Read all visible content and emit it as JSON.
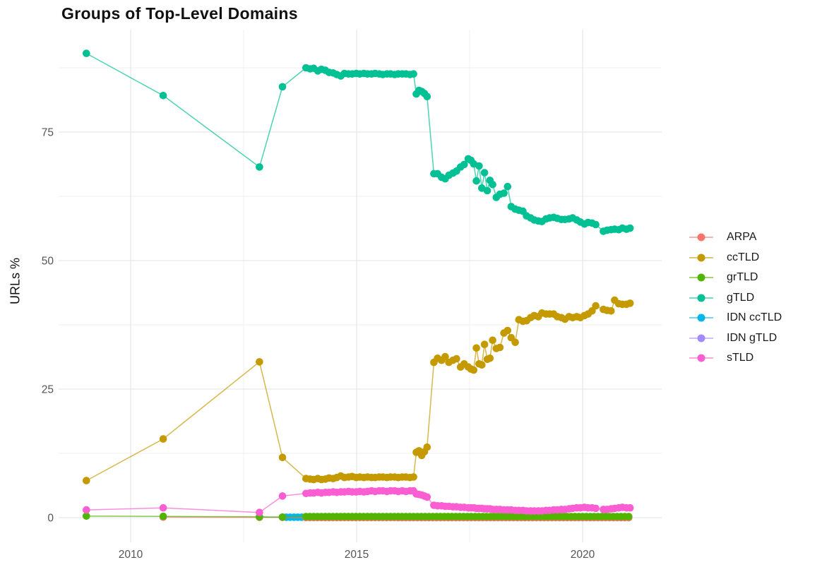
{
  "chart_data": {
    "type": "line",
    "title": "Groups of Top-Level Domains",
    "xlabel": "",
    "ylabel": "URLs %",
    "grid": true,
    "legend_position": "right",
    "x_ticks": [
      2010,
      2015,
      2020
    ],
    "x_minor": [
      2012.5,
      2017.5
    ],
    "y_ticks": [
      0,
      25,
      50,
      75
    ],
    "y_minor": [
      12.5,
      37.5,
      62.5,
      87.5
    ],
    "x_range": [
      2008.4,
      2021.75
    ],
    "y_range": [
      -4.8,
      94.9
    ],
    "draw_order": [
      "IDN gTLD",
      "IDN ccTLD",
      "ARPA",
      "grTLD",
      "ccTLD",
      "gTLD",
      "sTLD"
    ],
    "dense_x": [
      2013.88,
      2013.97,
      2014.05,
      2014.14,
      2014.22,
      2014.31,
      2014.39,
      2014.48,
      2014.56,
      2014.65,
      2014.73,
      2014.82,
      2014.9,
      2014.99,
      2015.07,
      2015.16,
      2015.24,
      2015.33,
      2015.41,
      2015.5,
      2015.58,
      2015.67,
      2015.75,
      2015.84,
      2015.92,
      2016.01,
      2016.09,
      2016.18,
      2016.26,
      2016.32,
      2016.38,
      2016.44,
      2016.5,
      2016.56,
      2016.71,
      2016.79,
      2016.88,
      2016.96,
      2017.04,
      2017.13,
      2017.21,
      2017.3,
      2017.38,
      2017.47,
      2017.53,
      2017.59,
      2017.65,
      2017.71,
      2017.77,
      2017.83,
      2017.89,
      2017.95,
      2018.01,
      2018.09,
      2018.17,
      2018.26,
      2018.34,
      2018.42,
      2018.51,
      2018.59,
      2018.68,
      2018.76,
      2018.85,
      2018.93,
      2019.02,
      2019.1,
      2019.19,
      2019.27,
      2019.36,
      2019.44,
      2019.53,
      2019.61,
      2019.7,
      2019.78,
      2019.87,
      2019.95,
      2020.04,
      2020.12,
      2020.21,
      2020.29,
      2020.46,
      2020.54,
      2020.63,
      2020.71,
      2020.8,
      2020.88,
      2020.97,
      2021.05
    ],
    "series": [
      {
        "name": "ARPA",
        "color": "#F8766D",
        "sparse": [
          [
            2010.72,
            0.1
          ],
          [
            2012.85,
            0.05
          ],
          [
            2013.36,
            0.05
          ]
        ],
        "flat": {
          "from": 2013.88,
          "to": 2021.05,
          "step": 0.085,
          "y": 0.02
        }
      },
      {
        "name": "ccTLD",
        "color": "#C49A00",
        "sparse": [
          [
            2009.02,
            7.2
          ],
          [
            2010.72,
            15.3
          ],
          [
            2012.85,
            30.3
          ],
          [
            2013.36,
            11.7
          ]
        ],
        "dense_y": [
          7.6,
          7.5,
          7.4,
          7.6,
          7.4,
          7.5,
          7.7,
          7.6,
          7.8,
          8.1,
          7.8,
          7.9,
          8.0,
          7.8,
          7.9,
          7.8,
          7.9,
          7.8,
          7.8,
          7.9,
          7.9,
          7.8,
          7.9,
          7.9,
          7.8,
          7.9,
          7.9,
          7.8,
          7.9,
          12.7,
          13.0,
          12.1,
          12.8,
          13.7,
          30.2,
          31.0,
          30.6,
          31.3,
          30.2,
          30.6,
          30.9,
          29.3,
          29.9,
          29.3,
          28.9,
          28.7,
          33.0,
          29.9,
          29.7,
          33.7,
          30.8,
          31.0,
          34.5,
          32.9,
          33.1,
          35.9,
          36.4,
          35.0,
          34.1,
          38.5,
          38.2,
          38.3,
          38.9,
          39.3,
          39.1,
          39.8,
          39.6,
          39.6,
          39.6,
          39.1,
          38.9,
          38.6,
          39.1,
          38.9,
          39.1,
          38.9,
          39.3,
          39.6,
          40.2,
          41.2,
          40.5,
          40.3,
          40.2,
          42.3,
          41.6,
          41.5,
          41.5,
          41.7
        ]
      },
      {
        "name": "grTLD",
        "color": "#53B400",
        "sparse": [
          [
            2009.02,
            0.3
          ],
          [
            2010.72,
            0.25
          ],
          [
            2012.85,
            0.15
          ],
          [
            2013.36,
            0.1
          ]
        ],
        "flat": {
          "from": 2013.88,
          "to": 2021.05,
          "step": 0.085,
          "y": 0.2
        }
      },
      {
        "name": "gTLD",
        "color": "#00C094",
        "sparse": [
          [
            2009.02,
            90.3
          ],
          [
            2010.72,
            82.1
          ],
          [
            2012.85,
            68.2
          ],
          [
            2013.36,
            83.8
          ]
        ],
        "dense_y": [
          87.5,
          87.3,
          87.4,
          86.9,
          87.2,
          87.0,
          86.6,
          86.5,
          86.2,
          85.9,
          86.4,
          86.3,
          86.3,
          86.4,
          86.3,
          86.4,
          86.3,
          86.3,
          86.4,
          86.3,
          86.2,
          86.3,
          86.3,
          86.2,
          86.3,
          86.3,
          86.3,
          86.2,
          86.3,
          82.4,
          83.1,
          82.9,
          82.5,
          81.9,
          66.9,
          66.9,
          66.2,
          65.9,
          66.6,
          67.0,
          67.4,
          68.2,
          68.7,
          69.8,
          69.5,
          68.8,
          65.5,
          68.4,
          64.1,
          67.1,
          63.6,
          65.6,
          64.8,
          62.3,
          62.9,
          63.1,
          64.4,
          60.5,
          60.0,
          59.8,
          59.6,
          58.7,
          58.3,
          57.9,
          57.7,
          57.6,
          58.1,
          58.3,
          58.4,
          58.2,
          58.0,
          58.0,
          58.1,
          58.3,
          57.9,
          57.5,
          57.1,
          57.4,
          57.3,
          57.0,
          55.7,
          55.9,
          56.0,
          56.1,
          56.0,
          56.3,
          56.1,
          56.3
        ]
      },
      {
        "name": "IDN ccTLD",
        "color": "#00B6EB",
        "sparse": [
          [
            2012.85,
            0.1
          ]
        ],
        "flat": {
          "from": 2013.36,
          "to": 2021.05,
          "step": 0.085,
          "y": 0.08
        }
      },
      {
        "name": "IDN gTLD",
        "color": "#A58AFF",
        "sparse": [],
        "flat": {
          "from": 2015.92,
          "to": 2021.05,
          "step": 0.085,
          "y": 0.0
        }
      },
      {
        "name": "sTLD",
        "color": "#FA5ED2",
        "sparse": [
          [
            2009.02,
            1.5
          ],
          [
            2010.72,
            1.9
          ],
          [
            2012.85,
            1.0
          ],
          [
            2013.36,
            4.2
          ]
        ],
        "dense_y": [
          4.7,
          4.8,
          4.8,
          4.9,
          4.8,
          4.9,
          4.9,
          5.0,
          4.9,
          5.0,
          5.0,
          5.1,
          5.0,
          5.0,
          5.1,
          5.0,
          5.1,
          5.2,
          5.1,
          5.2,
          5.2,
          5.1,
          5.2,
          5.2,
          5.1,
          5.2,
          5.1,
          5.2,
          5.2,
          4.6,
          4.5,
          4.4,
          4.2,
          4.0,
          2.4,
          2.3,
          2.3,
          2.2,
          2.2,
          2.1,
          2.1,
          2.0,
          2.0,
          1.9,
          1.9,
          1.9,
          1.8,
          1.8,
          1.8,
          1.7,
          1.7,
          1.7,
          1.6,
          1.6,
          1.6,
          1.5,
          1.5,
          1.5,
          1.4,
          1.4,
          1.4,
          1.3,
          1.3,
          1.3,
          1.3,
          1.3,
          1.4,
          1.4,
          1.5,
          1.5,
          1.6,
          1.6,
          1.7,
          1.8,
          1.9,
          1.9,
          2.0,
          1.9,
          1.9,
          1.8,
          1.6,
          1.6,
          1.7,
          1.8,
          1.9,
          2.0,
          1.9,
          1.9
        ]
      }
    ],
    "style": {
      "grid_major_color": "#e3e3e3",
      "grid_minor_color": "#efefef",
      "tick_label_color": "#555555",
      "point_radius": 5.3,
      "line_opacity": 0.7
    }
  }
}
